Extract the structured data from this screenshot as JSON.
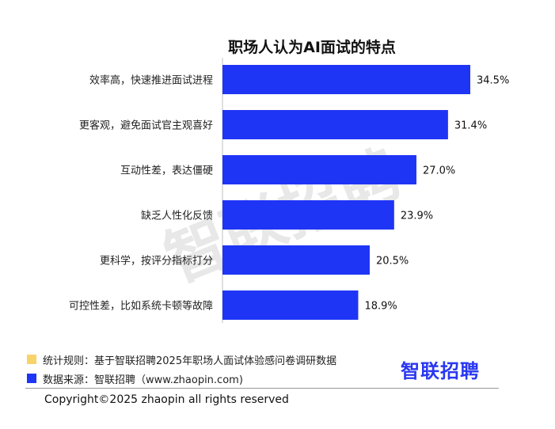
{
  "chart_data": {
    "type": "bar",
    "orientation": "horizontal",
    "title": "职场人认为AI面试的特点",
    "categories": [
      "效率高，快速推进面试进程",
      "更客观，避免面试官主观喜好",
      "互动性差，表达僵硬",
      "缺乏人性化反馈",
      "更科学，按评分指标打分",
      "可控性差，比如系统卡顿等故障"
    ],
    "values": [
      34.5,
      31.4,
      27.0,
      23.9,
      20.5,
      18.9
    ],
    "value_labels": [
      "34.5%",
      "31.4%",
      "27.0%",
      "23.9%",
      "20.5%",
      "18.9%"
    ],
    "xlim": [
      0,
      40
    ],
    "grid": false,
    "bar_color": "#1f35f5"
  },
  "watermark": "智联招聘",
  "notes": [
    {
      "text": "统计规则：基于智联招聘2025年职场人面试体验感问卷调研数据",
      "color": "#f7d36a"
    },
    {
      "text": "数据来源：智联招聘（www.zhaopin.com)",
      "color": "#1f35f5"
    }
  ],
  "logo": "智联招聘",
  "copyright": "Copyright©2025 zhaopin all rights reserved"
}
